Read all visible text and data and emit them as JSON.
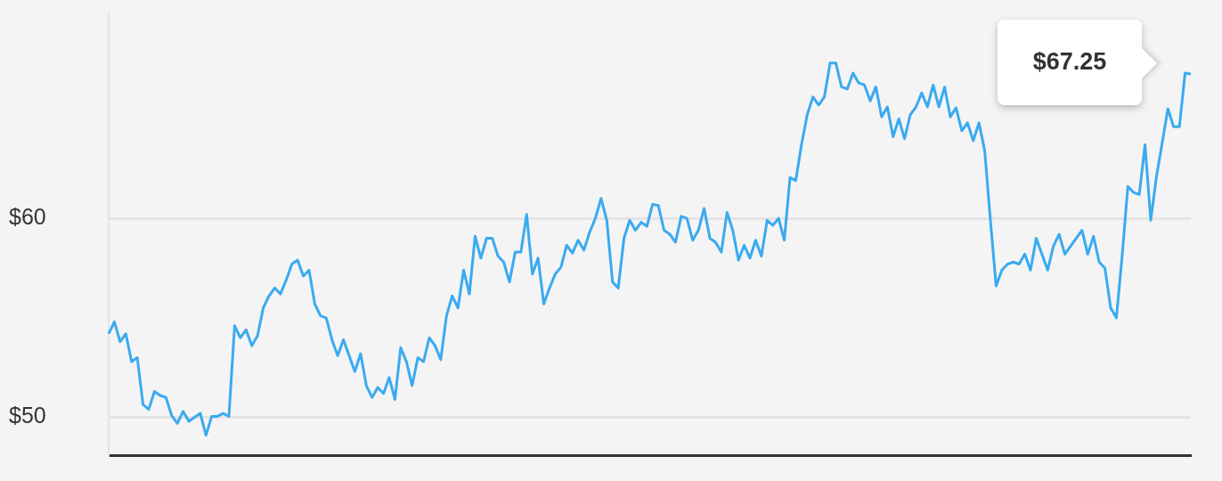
{
  "chart_data": {
    "type": "line",
    "categories": [
      null,
      null,
      null,
      null,
      null,
      null,
      null,
      null,
      null,
      null,
      null,
      null,
      null,
      null,
      null,
      null,
      null,
      null,
      null,
      null,
      null,
      null,
      null,
      null,
      null,
      null,
      null,
      null,
      null,
      null,
      null,
      null,
      null,
      null,
      null,
      null,
      null,
      null,
      null,
      null,
      null,
      null,
      null,
      null,
      null,
      null,
      null,
      null,
      null,
      null,
      null,
      null,
      null,
      null,
      null,
      null,
      null,
      null,
      null,
      null,
      null,
      null,
      null,
      null,
      null,
      null,
      null,
      null,
      null,
      null,
      null,
      null,
      null,
      null,
      null,
      null,
      null,
      null,
      null,
      null,
      null,
      null,
      null,
      null,
      null,
      null,
      null,
      null,
      null,
      null,
      null,
      null,
      null,
      null,
      null,
      null,
      null,
      null,
      null,
      null,
      null,
      null,
      null,
      null,
      null,
      null,
      null,
      null,
      null,
      null,
      null,
      null,
      null,
      null,
      null,
      null,
      null,
      null,
      null,
      null,
      null,
      null,
      null,
      null,
      null,
      null,
      null,
      null,
      null,
      null,
      null,
      null,
      null,
      null,
      null,
      null,
      null,
      null,
      null,
      null,
      null,
      null,
      null,
      null,
      null,
      null,
      null,
      null,
      null,
      null,
      null,
      null,
      null,
      null,
      null,
      null,
      null,
      null,
      null,
      null,
      null,
      null,
      null,
      null,
      null,
      null,
      null,
      null,
      null,
      null,
      null,
      null,
      null,
      null,
      null,
      null,
      null,
      null,
      null,
      null,
      null,
      null,
      null,
      null,
      null,
      null,
      null,
      null,
      null,
      null
    ],
    "series": [
      {
        "color": "#3aaaf0",
        "values": [
          54.2,
          54.8,
          53.8,
          54.2,
          52.8,
          53.0,
          50.65,
          50.4,
          51.3,
          51.1,
          51.0,
          50.1,
          49.7,
          50.3,
          49.8,
          50.0,
          50.2,
          49.1,
          50.05,
          50.05,
          50.2,
          50.05,
          54.6,
          54.0,
          54.4,
          53.6,
          54.1,
          55.5,
          56.1,
          56.5,
          56.2,
          56.9,
          57.7,
          57.9,
          57.1,
          57.4,
          55.7,
          55.1,
          55.0,
          53.9,
          53.1,
          53.9,
          53.1,
          52.3,
          53.2,
          51.6,
          51.0,
          51.5,
          51.2,
          52.0,
          50.9,
          53.5,
          52.8,
          51.6,
          53.0,
          52.8,
          54.0,
          53.6,
          52.9,
          55.1,
          56.1,
          55.5,
          57.4,
          56.2,
          59.1,
          58.0,
          59.0,
          59.0,
          58.1,
          57.8,
          56.8,
          58.3,
          58.3,
          60.2,
          57.2,
          58.0,
          55.7,
          56.5,
          57.2,
          57.55,
          58.65,
          58.25,
          58.9,
          58.4,
          59.3,
          60.0,
          61.0,
          59.9,
          56.8,
          56.5,
          59.0,
          59.9,
          59.4,
          59.8,
          59.6,
          60.7,
          60.65,
          59.4,
          59.2,
          58.8,
          60.1,
          60.0,
          58.9,
          59.4,
          60.5,
          59.0,
          58.8,
          58.3,
          60.3,
          59.4,
          57.9,
          58.65,
          58.0,
          58.9,
          58.1,
          59.9,
          59.65,
          60.0,
          58.9,
          62.05,
          61.9,
          63.7,
          65.2,
          66.1,
          65.7,
          66.1,
          67.8,
          67.8,
          66.6,
          66.5,
          67.3,
          66.8,
          66.7,
          65.9,
          66.6,
          65.1,
          65.6,
          64.1,
          65.0,
          64.0,
          65.2,
          65.6,
          66.3,
          65.6,
          66.7,
          65.6,
          66.6,
          65.1,
          65.55,
          64.4,
          64.8,
          63.9,
          64.8,
          63.4,
          59.9,
          56.6,
          57.4,
          57.7,
          57.8,
          57.7,
          58.2,
          57.4,
          59.0,
          58.2,
          57.4,
          58.6,
          59.2,
          58.2,
          58.6,
          59.0,
          59.4,
          58.2,
          59.1,
          57.8,
          57.5,
          55.5,
          55.0,
          58.1,
          61.6,
          61.3,
          61.2,
          63.7,
          59.9,
          62.1,
          63.8,
          65.5,
          64.6,
          64.6,
          67.3,
          67.25
        ]
      }
    ],
    "ylim": [
      48.1,
      70.3
    ],
    "yticks": [
      {
        "value": 50,
        "label": "$50"
      },
      {
        "value": 60,
        "label": "$60"
      }
    ],
    "grid": "y",
    "tick_labels": "y",
    "marker": "none",
    "annotations": [
      "$67.25"
    ]
  }
}
